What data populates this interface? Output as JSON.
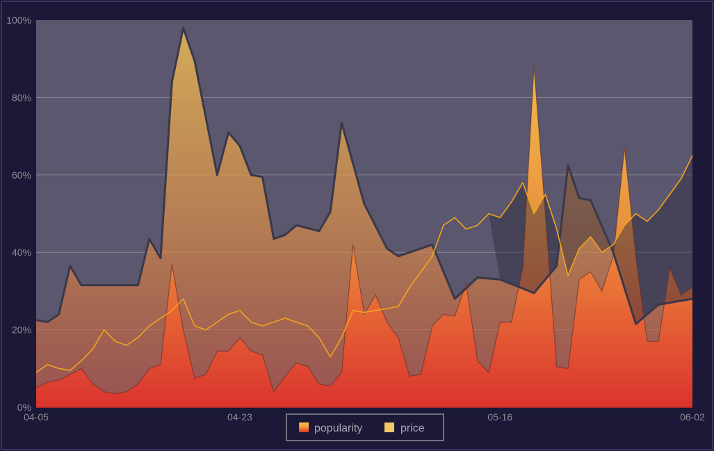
{
  "chart_data": {
    "type": "area",
    "x_start": "04-05",
    "x_end": "06-02",
    "xticks": [
      "04-05",
      "04-23",
      "05-16",
      "06-02"
    ],
    "yticks": [
      "0%",
      "20%",
      "40%",
      "60%",
      "80%",
      "100%"
    ],
    "ylim": [
      0,
      100
    ],
    "grid": true,
    "legend_position": "bottom-center",
    "colors": {
      "background": "#1c1837",
      "plot_area": "#5a576e",
      "popularity_top": "#f6a43a",
      "popularity_bottom": "#e0312b",
      "price_line": "#f3a41c",
      "band_fill": "#e6a84e"
    },
    "series": [
      {
        "name": "popularity",
        "points": [
          [
            "04-05",
            5
          ],
          [
            "04-06",
            6.5
          ],
          [
            "04-07",
            7
          ],
          [
            "04-08",
            8.5
          ],
          [
            "04-09",
            10
          ],
          [
            "04-10",
            6
          ],
          [
            "04-11",
            4
          ],
          [
            "04-12",
            3.5
          ],
          [
            "04-13",
            4
          ],
          [
            "04-14",
            6
          ],
          [
            "04-15",
            10
          ],
          [
            "04-16",
            11
          ],
          [
            "04-17",
            37
          ],
          [
            "04-18",
            20
          ],
          [
            "04-19",
            7.5
          ],
          [
            "04-20",
            8.5
          ],
          [
            "04-21",
            14.5
          ],
          [
            "04-22",
            14.5
          ],
          [
            "04-23",
            18
          ],
          [
            "04-24",
            14.5
          ],
          [
            "04-25",
            13.5
          ],
          [
            "04-26",
            4
          ],
          [
            "04-27",
            8
          ],
          [
            "04-28",
            11.5
          ],
          [
            "04-29",
            10.5
          ],
          [
            "04-30",
            6
          ],
          [
            "05-01",
            5.5
          ],
          [
            "05-02",
            9
          ],
          [
            "05-03",
            42
          ],
          [
            "05-04",
            24
          ],
          [
            "05-05",
            29
          ],
          [
            "05-06",
            22
          ],
          [
            "05-07",
            18
          ],
          [
            "05-08",
            8
          ],
          [
            "05-09",
            8.5
          ],
          [
            "05-10",
            21
          ],
          [
            "05-11",
            24
          ],
          [
            "05-12",
            23.5
          ],
          [
            "05-13",
            32
          ],
          [
            "05-14",
            12
          ],
          [
            "05-15",
            9
          ],
          [
            "05-16",
            22
          ],
          [
            "05-17",
            22
          ],
          [
            "05-18",
            36
          ],
          [
            "05-19",
            88
          ],
          [
            "05-20",
            50
          ],
          [
            "05-21",
            10.5
          ],
          [
            "05-22",
            10
          ],
          [
            "05-23",
            33
          ],
          [
            "05-24",
            35
          ],
          [
            "05-25",
            30
          ],
          [
            "05-26",
            39
          ],
          [
            "05-27",
            67
          ],
          [
            "05-28",
            39
          ],
          [
            "05-29",
            17
          ],
          [
            "05-30",
            17
          ],
          [
            "05-31",
            36
          ],
          [
            "06-01",
            29
          ],
          [
            "06-02",
            31
          ]
        ]
      },
      {
        "name": "price",
        "points": [
          [
            "04-05",
            9
          ],
          [
            "04-06",
            11
          ],
          [
            "04-07",
            10
          ],
          [
            "04-08",
            9.5
          ],
          [
            "04-09",
            12
          ],
          [
            "04-10",
            15
          ],
          [
            "04-11",
            20
          ],
          [
            "04-12",
            17
          ],
          [
            "04-13",
            16
          ],
          [
            "04-14",
            18
          ],
          [
            "04-15",
            21
          ],
          [
            "04-16",
            23
          ],
          [
            "04-17",
            25
          ],
          [
            "04-18",
            28
          ],
          [
            "04-19",
            21
          ],
          [
            "04-20",
            20
          ],
          [
            "04-21",
            22
          ],
          [
            "04-22",
            24
          ],
          [
            "04-23",
            25
          ],
          [
            "04-24",
            22
          ],
          [
            "04-25",
            21
          ],
          [
            "04-26",
            22
          ],
          [
            "04-27",
            23
          ],
          [
            "04-28",
            22
          ],
          [
            "04-29",
            21
          ],
          [
            "04-30",
            18
          ],
          [
            "05-01",
            13
          ],
          [
            "05-02",
            18
          ],
          [
            "05-03",
            25
          ],
          [
            "05-04",
            24.5
          ],
          [
            "05-05",
            25
          ],
          [
            "05-06",
            25.5
          ],
          [
            "05-07",
            26
          ],
          [
            "05-08",
            31
          ],
          [
            "05-09",
            35
          ],
          [
            "05-10",
            39
          ],
          [
            "05-11",
            47
          ],
          [
            "05-12",
            49
          ],
          [
            "05-13",
            46
          ],
          [
            "05-14",
            47
          ],
          [
            "05-15",
            50
          ],
          [
            "05-16",
            49
          ],
          [
            "05-17",
            53
          ],
          [
            "05-18",
            58
          ],
          [
            "05-19",
            50
          ],
          [
            "05-20",
            55
          ],
          [
            "05-21",
            46
          ],
          [
            "05-22",
            34
          ],
          [
            "05-23",
            41
          ],
          [
            "05-24",
            44
          ],
          [
            "05-25",
            40
          ],
          [
            "05-26",
            42
          ],
          [
            "05-27",
            47
          ],
          [
            "05-28",
            50
          ],
          [
            "05-29",
            48
          ],
          [
            "05-30",
            51
          ],
          [
            "05-31",
            55
          ],
          [
            "06-01",
            59
          ],
          [
            "06-02",
            65
          ]
        ]
      },
      {
        "points": [
          [
            "04-05",
            22.5
          ],
          [
            "04-06",
            22
          ],
          [
            "04-07",
            24
          ],
          [
            "04-08",
            36.5
          ],
          [
            "04-09",
            31.5
          ],
          [
            "04-14",
            31.5
          ],
          [
            "04-15",
            43.5
          ],
          [
            "04-16",
            38.5
          ],
          [
            "04-17",
            84
          ],
          [
            "04-18",
            98
          ],
          [
            "04-19",
            89.5
          ],
          [
            "04-21",
            60
          ],
          [
            "04-22",
            71
          ],
          [
            "04-23",
            67.5
          ],
          [
            "04-24",
            60
          ],
          [
            "04-25",
            59.5
          ],
          [
            "04-26",
            43.5
          ],
          [
            "04-27",
            44.5
          ],
          [
            "04-28",
            47
          ],
          [
            "04-30",
            45.5
          ],
          [
            "05-01",
            50.5
          ],
          [
            "05-02",
            73.5
          ],
          [
            "05-04",
            52.5
          ],
          [
            "05-06",
            41
          ],
          [
            "05-07",
            39
          ],
          [
            "05-10",
            42
          ],
          [
            "05-12",
            28
          ],
          [
            "05-14",
            33.5
          ],
          [
            "05-16",
            33
          ],
          [
            "05-19",
            29.5
          ],
          [
            "05-21",
            36.5
          ],
          [
            "05-22",
            62.5
          ],
          [
            "05-23",
            54
          ],
          [
            "05-24",
            53.5
          ],
          [
            "05-26",
            40
          ],
          [
            "05-28",
            21.5
          ],
          [
            "05-30",
            26.5
          ],
          [
            "06-02",
            28
          ]
        ]
      }
    ]
  }
}
